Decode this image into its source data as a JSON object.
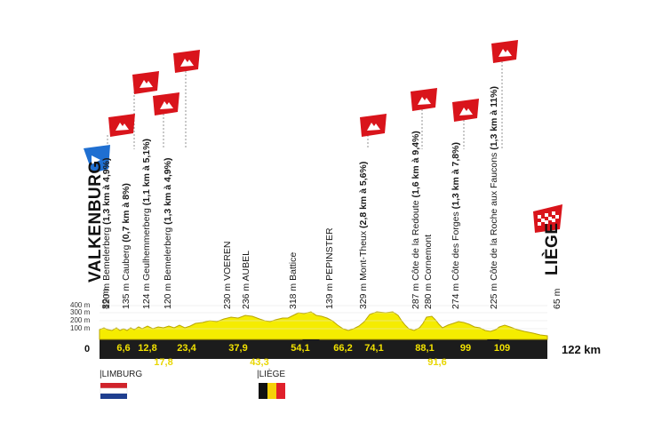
{
  "start": {
    "city": "VALKENBURG",
    "altitude": "89 m",
    "km": "0"
  },
  "finish": {
    "city": "LIÈGE",
    "altitude": "65 m",
    "km": "122 km"
  },
  "axis_ticks": [
    "400 m",
    "300 m",
    "200 m",
    "100 m"
  ],
  "climbs": [
    {
      "altitude": "120 m",
      "name": "Bemelerberg",
      "detail": "(1,3 km à 4,9%)"
    },
    {
      "altitude": "135 m",
      "name": "Cauberg",
      "detail": "(0,7 km à 8%)"
    },
    {
      "altitude": "124 m",
      "name": "Geulhemmerberg",
      "detail": "(1,1 km à 5,1%)"
    },
    {
      "altitude": "120 m",
      "name": "Bemelerberg",
      "detail": "(1,3 km à 4,9%)"
    },
    {
      "altitude": "329 m",
      "name": "Mont-Theux",
      "detail": "(2,8 km à 5,6%)"
    },
    {
      "altitude": "287 m",
      "name": "Côte de la Redoute",
      "detail": "(1,6 km à 9,4%)"
    },
    {
      "altitude": "274 m",
      "name": "Côte des Forges",
      "detail": "(1,3 km à 7,8%)"
    },
    {
      "altitude": "225 m",
      "name": "Côte de la Roche aux Faucons",
      "detail": "(1,3 km à 11%)"
    }
  ],
  "waypoints": [
    {
      "altitude": "230 m",
      "name": "VOEREN"
    },
    {
      "altitude": "236 m",
      "name": "AUBEL"
    },
    {
      "altitude": "318 m",
      "name": "Battice"
    },
    {
      "altitude": "139 m",
      "name": "PEPINSTER"
    },
    {
      "altitude": "280 m",
      "name": "Cornemont"
    }
  ],
  "km_markers_upper": [
    "6,6",
    "12,8",
    "23,4",
    "37,9",
    "54,1",
    "66,2",
    "74,1",
    "88,1",
    "99",
    "109"
  ],
  "km_markers_lower": [
    "17,8",
    "43,3",
    "91,6"
  ],
  "regions": [
    {
      "name": "|LIMBURG",
      "flag": "netherlands"
    },
    {
      "name": "|LIÈGE",
      "flag": "belgium"
    }
  ],
  "colors": {
    "profile_fill": "#f5ec00",
    "profile_stroke": "#b9a600",
    "base_bar": "#1c1c1c",
    "climb_flag": "#d9141b",
    "start_flag": "#1f6fd1"
  }
}
